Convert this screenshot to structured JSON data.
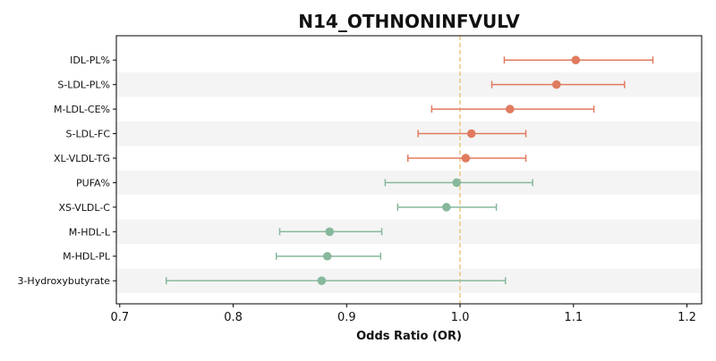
{
  "chart_data": {
    "type": "forest",
    "title": "N14_OTHNONINFVULV",
    "xlabel": "Odds Ratio (OR)",
    "xlim": [
      0.697,
      1.213
    ],
    "xticks": [
      0.7,
      0.8,
      0.9,
      1.0,
      1.1,
      1.2
    ],
    "xtick_labels": [
      "0.7",
      "0.8",
      "0.9",
      "1.0",
      "1.1",
      "1.2"
    ],
    "reference_line": 1.0,
    "colors": {
      "above_one": "#e07b5f",
      "below_one": "#88b89c",
      "reference": "#efc88a",
      "band": "#f4f4f4",
      "axis": "#000000"
    },
    "items": [
      {
        "label": "IDL-PL%",
        "or": 1.102,
        "lo": 1.039,
        "hi": 1.17
      },
      {
        "label": "S-LDL-PL%",
        "or": 1.085,
        "lo": 1.028,
        "hi": 1.145
      },
      {
        "label": "M-LDL-CE%",
        "or": 1.044,
        "lo": 0.975,
        "hi": 1.118
      },
      {
        "label": "S-LDL-FC",
        "or": 1.01,
        "lo": 0.963,
        "hi": 1.058
      },
      {
        "label": "XL-VLDL-TG",
        "or": 1.005,
        "lo": 0.954,
        "hi": 1.058
      },
      {
        "label": "PUFA%",
        "or": 0.997,
        "lo": 0.934,
        "hi": 1.064
      },
      {
        "label": "XS-VLDL-C",
        "or": 0.988,
        "lo": 0.945,
        "hi": 1.032
      },
      {
        "label": "M-HDL-L",
        "or": 0.885,
        "lo": 0.841,
        "hi": 0.931
      },
      {
        "label": "M-HDL-PL",
        "or": 0.883,
        "lo": 0.838,
        "hi": 0.93
      },
      {
        "label": "3-Hydroxybutyrate",
        "or": 0.878,
        "lo": 0.741,
        "hi": 1.04
      }
    ]
  }
}
